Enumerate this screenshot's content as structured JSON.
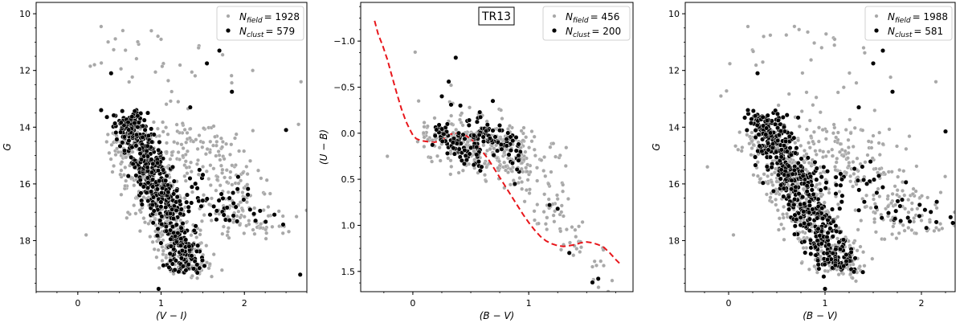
{
  "chart_data": [
    {
      "type": "scatter",
      "panel": "left",
      "title": "",
      "xlabel": "(V − I)",
      "ylabel": "G",
      "xlim": [
        -0.5,
        2.75
      ],
      "ylim": [
        19.8,
        9.6
      ],
      "y_inverted": true,
      "xticks": [
        0,
        1,
        2
      ],
      "yticks": [
        10,
        12,
        14,
        16,
        18
      ],
      "legend_position": "top-right",
      "series": [
        {
          "role": "field",
          "legend_symbol": "N",
          "legend_sub": "field",
          "legend_value": "= 1928",
          "color": "#a8a8a8"
        },
        {
          "role": "cluster",
          "legend_symbol": "N",
          "legend_sub": "clust",
          "legend_value": "= 579",
          "color": "#000000"
        }
      ],
      "field_clouds": [
        {
          "n": 430,
          "y": [
            14.2,
            19.2
          ],
          "x_center": [
            0.55,
            1.35
          ],
          "x_spread": 0.17
        },
        {
          "n": 240,
          "y": [
            14.0,
            17.8
          ],
          "x_center": [
            1.2,
            2.2
          ],
          "x_spread": 0.3
        },
        {
          "n": 40,
          "y": [
            10.4,
            14.5
          ],
          "x_center": [
            0.8,
            1.4
          ],
          "x_spread": 0.45
        }
      ],
      "cluster_clouds": [
        {
          "n": 520,
          "y": [
            13.5,
            19.1
          ],
          "x_center": [
            0.6,
            1.35
          ],
          "x_spread": 0.12
        },
        {
          "n": 55,
          "y": [
            15.3,
            17.5
          ],
          "x_center": [
            1.2,
            2.1
          ],
          "x_spread": 0.35
        }
      ],
      "field_points": [
        [
          0.28,
          10.45
        ],
        [
          0.2,
          11.8
        ],
        [
          0.15,
          11.85
        ],
        [
          0.1,
          17.8
        ],
        [
          2.68,
          12.4
        ],
        [
          2.1,
          12.0
        ],
        [
          1.0,
          10.9
        ],
        [
          1.45,
          11.2
        ],
        [
          2.65,
          13.9
        ]
      ],
      "cluster_points": [
        [
          0.4,
          12.1
        ],
        [
          0.28,
          13.4
        ],
        [
          1.7,
          11.3
        ],
        [
          1.55,
          11.75
        ],
        [
          1.85,
          12.75
        ],
        [
          2.5,
          14.1
        ],
        [
          2.67,
          19.2
        ],
        [
          1.35,
          13.3
        ],
        [
          0.97,
          19.7
        ]
      ]
    },
    {
      "type": "scatter",
      "panel": "middle",
      "title": "TR13",
      "xlabel": "(B − V)",
      "ylabel": "(U − B)",
      "xlim": [
        -0.45,
        1.9
      ],
      "ylim": [
        1.72,
        -1.42
      ],
      "y_inverted": true,
      "xticks": [
        0,
        1
      ],
      "yticks": [
        -1.0,
        -0.5,
        0.0,
        0.5,
        1.0,
        1.5
      ],
      "legend_position": "top-right",
      "series": [
        {
          "role": "field",
          "legend_symbol": "N",
          "legend_sub": "field",
          "legend_value": "= 456",
          "color": "#a8a8a8"
        },
        {
          "role": "cluster",
          "legend_symbol": "N",
          "legend_sub": "clust",
          "legend_value": "= 200",
          "color": "#000000"
        },
        {
          "role": "isochrone",
          "style": "dashed",
          "color": "#e8161b",
          "x": [
            -0.33,
            -0.3,
            -0.26,
            -0.22,
            -0.18,
            -0.14,
            -0.1,
            -0.06,
            -0.03,
            0.0,
            0.03,
            0.07,
            0.12,
            0.17,
            0.22,
            0.27,
            0.31,
            0.35,
            0.4,
            0.45,
            0.5,
            0.55,
            0.6,
            0.65,
            0.7,
            0.75,
            0.8,
            0.85,
            0.9,
            0.95,
            1.0,
            1.05,
            1.1,
            1.15,
            1.2,
            1.25,
            1.3,
            1.35,
            1.4,
            1.45,
            1.5,
            1.55,
            1.6,
            1.65,
            1.7,
            1.75,
            1.79
          ],
          "y": [
            -1.22,
            -1.08,
            -0.95,
            -0.8,
            -0.62,
            -0.44,
            -0.27,
            -0.13,
            -0.05,
            0.02,
            0.06,
            0.08,
            0.09,
            0.1,
            0.09,
            0.06,
            0.02,
            0.0,
            0.0,
            0.02,
            0.06,
            0.12,
            0.2,
            0.28,
            0.38,
            0.48,
            0.58,
            0.68,
            0.78,
            0.88,
            0.97,
            1.05,
            1.12,
            1.17,
            1.2,
            1.22,
            1.23,
            1.22,
            1.21,
            1.19,
            1.18,
            1.19,
            1.21,
            1.24,
            1.3,
            1.37,
            1.42
          ]
        }
      ],
      "field_clouds": [
        {
          "n": 230,
          "x": [
            0.1,
            1.05
          ],
          "y_from": [
            0.0,
            0.05
          ],
          "y_to": [
            0.05,
            0.55
          ],
          "spread": 0.12
        },
        {
          "n": 120,
          "x": [
            0.3,
            1.35
          ],
          "y_from": [
            -0.3,
            0.0
          ],
          "y_to": [
            0.4,
            0.9
          ],
          "spread": 0.18
        },
        {
          "n": 45,
          "x": [
            1.05,
            1.65
          ],
          "y_from": [
            0.7,
            0.9
          ],
          "y_to": [
            1.2,
            1.65
          ],
          "spread": 0.12
        }
      ],
      "cluster_clouds": [
        {
          "n": 95,
          "x": [
            0.2,
            0.6
          ],
          "y_from": [
            -0.05,
            0.1
          ],
          "y_to": [
            0.1,
            0.35
          ],
          "spread": 0.07
        },
        {
          "n": 80,
          "x": [
            0.5,
            0.95
          ],
          "y_from": [
            -0.15,
            0.0
          ],
          "y_to": [
            0.1,
            0.4
          ],
          "spread": 0.07
        }
      ],
      "field_points": [
        [
          0.02,
          -0.88
        ],
        [
          -0.22,
          0.25
        ],
        [
          0.05,
          -0.35
        ],
        [
          1.55,
          1.45
        ],
        [
          1.72,
          1.6
        ],
        [
          1.3,
          0.9
        ],
        [
          1.4,
          1.05
        ]
      ],
      "cluster_points": [
        [
          0.37,
          -0.82
        ],
        [
          0.31,
          -0.56
        ],
        [
          0.25,
          -0.4
        ],
        [
          0.41,
          -0.3
        ],
        [
          0.33,
          -0.31
        ],
        [
          0.69,
          -0.35
        ],
        [
          1.25,
          0.82
        ],
        [
          1.55,
          1.62
        ],
        [
          1.6,
          1.58
        ],
        [
          1.35,
          1.3
        ],
        [
          1.18,
          0.78
        ],
        [
          0.88,
          0.55
        ]
      ]
    },
    {
      "type": "scatter",
      "panel": "right",
      "title": "",
      "xlabel": "(B − V)",
      "ylabel": "G",
      "xlim": [
        -0.45,
        2.35
      ],
      "ylim": [
        19.8,
        9.6
      ],
      "y_inverted": true,
      "xticks": [
        0,
        1,
        2
      ],
      "yticks": [
        10,
        12,
        14,
        16,
        18
      ],
      "legend_position": "top-right",
      "series": [
        {
          "role": "field",
          "legend_symbol": "N",
          "legend_sub": "field",
          "legend_value": "= 1988",
          "color": "#a8a8a8"
        },
        {
          "role": "cluster",
          "legend_symbol": "N",
          "legend_sub": "clust",
          "legend_value": "= 581",
          "color": "#000000"
        }
      ],
      "field_clouds": [
        {
          "n": 440,
          "y": [
            14.2,
            19.2
          ],
          "x_center": [
            0.35,
            1.2
          ],
          "x_spread": 0.17
        },
        {
          "n": 240,
          "y": [
            14.0,
            17.8
          ],
          "x_center": [
            1.0,
            2.0
          ],
          "x_spread": 0.3
        },
        {
          "n": 40,
          "y": [
            10.4,
            14.5
          ],
          "x_center": [
            0.6,
            1.3
          ],
          "x_spread": 0.45
        }
      ],
      "cluster_clouds": [
        {
          "n": 520,
          "y": [
            13.5,
            19.1
          ],
          "x_center": [
            0.35,
            1.15
          ],
          "x_spread": 0.12
        },
        {
          "n": 57,
          "y": [
            15.3,
            17.5
          ],
          "x_center": [
            1.0,
            2.0
          ],
          "x_spread": 0.35
        }
      ],
      "field_points": [
        [
          0.2,
          10.45
        ],
        [
          -0.08,
          12.9
        ],
        [
          -0.22,
          15.4
        ],
        [
          0.05,
          17.8
        ],
        [
          2.15,
          12.4
        ],
        [
          2.2,
          16.3
        ],
        [
          1.1,
          10.9
        ],
        [
          1.4,
          11.2
        ]
      ],
      "cluster_points": [
        [
          0.3,
          12.1
        ],
        [
          0.2,
          13.4
        ],
        [
          1.6,
          11.3
        ],
        [
          1.5,
          11.75
        ],
        [
          1.7,
          12.75
        ],
        [
          2.25,
          14.15
        ],
        [
          1.35,
          13.3
        ],
        [
          1.0,
          19.7
        ],
        [
          1.3,
          19.1
        ]
      ]
    }
  ]
}
